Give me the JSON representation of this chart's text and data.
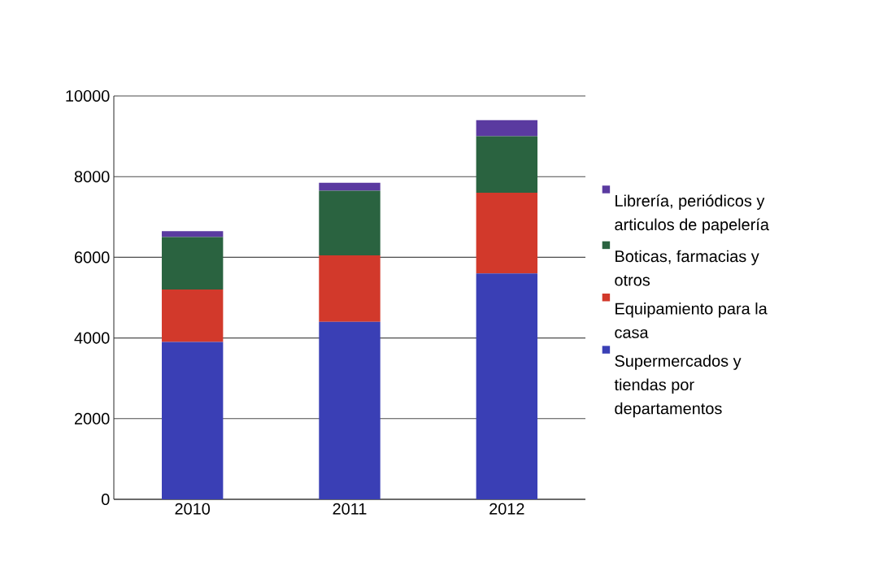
{
  "chart_data": {
    "type": "bar",
    "stacked": true,
    "categories": [
      "2010",
      "2011",
      "2012"
    ],
    "series": [
      {
        "name": "Supermercados y tiendas por departamentos",
        "color": "#3a3fb5",
        "values": [
          3900,
          4400,
          5600
        ]
      },
      {
        "name": "Equipamiento para la casa",
        "color": "#d2392b",
        "values": [
          1300,
          1650,
          2000
        ]
      },
      {
        "name": "Boticas, farmacias y otros",
        "color": "#2a6340",
        "values": [
          1300,
          1600,
          1400
        ]
      },
      {
        "name": "Librería, periódicos y articulos de papelería",
        "color": "#5a3aa0",
        "values": [
          150,
          200,
          400
        ]
      }
    ],
    "ylim": [
      0,
      10000
    ],
    "yticks": [
      0,
      2000,
      4000,
      6000,
      8000,
      10000
    ],
    "grid": "y",
    "legend": "right"
  }
}
